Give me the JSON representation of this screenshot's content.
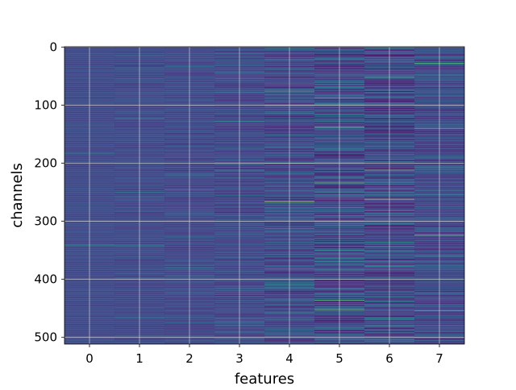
{
  "chart_data": {
    "type": "heatmap",
    "title": "",
    "xlabel": "features",
    "ylabel": "channels",
    "x_ticks": [
      0,
      1,
      2,
      3,
      4,
      5,
      6,
      7
    ],
    "y_ticks": [
      0,
      100,
      200,
      300,
      400,
      500
    ],
    "xlim": [
      -0.5,
      7.5
    ],
    "ylim": [
      511.5,
      -0.5
    ],
    "y_inverted": true,
    "grid": true,
    "colormap": "viridis",
    "n_rows": 512,
    "n_cols": 8,
    "column_variation": [
      0.03,
      0.05,
      0.06,
      0.09,
      0.12,
      0.15,
      0.16,
      0.11
    ],
    "highlights": [
      {
        "col": 0,
        "row": 341,
        "value": 0.55
      },
      {
        "col": 1,
        "row": 341,
        "value": 0.5
      },
      {
        "col": 3,
        "row": 128,
        "value": 0.45
      },
      {
        "col": 3,
        "row": 256,
        "value": 0.5
      },
      {
        "col": 4,
        "row": 76,
        "value": 0.7
      },
      {
        "col": 4,
        "row": 200,
        "value": 0.6
      },
      {
        "col": 4,
        "row": 266,
        "value": 0.85
      },
      {
        "col": 5,
        "row": 88,
        "value": 0.7
      },
      {
        "col": 5,
        "row": 138,
        "value": 0.8
      },
      {
        "col": 5,
        "row": 234,
        "value": 0.75
      },
      {
        "col": 5,
        "row": 264,
        "value": 0.0
      },
      {
        "col": 5,
        "row": 436,
        "value": 0.7
      },
      {
        "col": 5,
        "row": 452,
        "value": 0.75
      },
      {
        "col": 6,
        "row": 14,
        "value": 0.0
      },
      {
        "col": 6,
        "row": 52,
        "value": 0.7
      },
      {
        "col": 6,
        "row": 212,
        "value": 0.8
      },
      {
        "col": 6,
        "row": 262,
        "value": 0.9
      },
      {
        "col": 7,
        "row": 28,
        "value": 0.7
      },
      {
        "col": 7,
        "row": 140,
        "value": 0.7
      },
      {
        "col": 7,
        "row": 324,
        "value": 0.8
      },
      {
        "col": 7,
        "row": 454,
        "value": 0.65
      }
    ]
  }
}
